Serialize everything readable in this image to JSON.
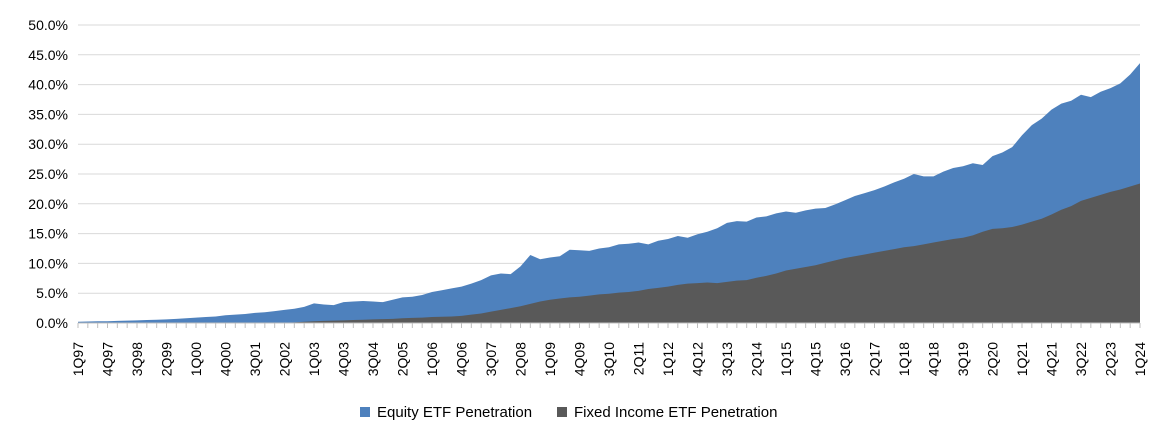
{
  "chart_data": {
    "type": "area",
    "title": "",
    "x_unit": "quarter",
    "x_first": "1Q97",
    "x_last": "1Q24",
    "n_points": 109,
    "x_tick_every": 3,
    "x_tick_labels": [
      "1Q97",
      "4Q97",
      "3Q98",
      "2Q99",
      "1Q00",
      "4Q00",
      "3Q01",
      "2Q02",
      "1Q03",
      "4Q03",
      "3Q04",
      "2Q05",
      "1Q06",
      "4Q06",
      "3Q07",
      "2Q08",
      "1Q09",
      "4Q09",
      "3Q10",
      "2Q11",
      "1Q12",
      "4Q12",
      "3Q13",
      "2Q14",
      "1Q15",
      "4Q15",
      "3Q16",
      "2Q17",
      "1Q18",
      "4Q18",
      "3Q19",
      "2Q20",
      "1Q21",
      "4Q21",
      "3Q22",
      "2Q23",
      "1Q24"
    ],
    "y_tick_labels": [
      "0.0%",
      "5.0%",
      "10.0%",
      "15.0%",
      "20.0%",
      "25.0%",
      "30.0%",
      "35.0%",
      "40.0%",
      "45.0%",
      "50.0%"
    ],
    "ylim": [
      0,
      50
    ],
    "y_tick_step": 5,
    "grid": true,
    "legend_position": "bottom",
    "render_style": "overlapping areas from zero baseline; equity drawn behind, fixed income drawn in front",
    "series": [
      {
        "name": "Equity ETF Penetration",
        "color": "#4E81BD",
        "values": [
          0.2,
          0.25,
          0.3,
          0.3,
          0.35,
          0.4,
          0.45,
          0.5,
          0.55,
          0.6,
          0.7,
          0.8,
          0.9,
          1.0,
          1.1,
          1.3,
          1.4,
          1.5,
          1.7,
          1.8,
          2.0,
          2.2,
          2.4,
          2.7,
          3.3,
          3.1,
          3.0,
          3.5,
          3.6,
          3.7,
          3.6,
          3.5,
          3.9,
          4.3,
          4.4,
          4.7,
          5.2,
          5.5,
          5.8,
          6.1,
          6.6,
          7.2,
          8.0,
          8.3,
          8.2,
          9.5,
          11.4,
          10.7,
          11.0,
          11.2,
          12.3,
          12.2,
          12.1,
          12.5,
          12.7,
          13.2,
          13.3,
          13.5,
          13.2,
          13.8,
          14.1,
          14.6,
          14.3,
          14.9,
          15.3,
          15.9,
          16.8,
          17.1,
          17.0,
          17.7,
          17.9,
          18.4,
          18.7,
          18.5,
          18.9,
          19.2,
          19.3,
          19.9,
          20.6,
          21.3,
          21.8,
          22.3,
          22.9,
          23.6,
          24.2,
          25.0,
          24.6,
          24.6,
          25.4,
          26.0,
          26.3,
          26.8,
          26.5,
          28.0,
          28.6,
          29.5,
          31.5,
          33.2,
          34.3,
          35.8,
          36.8,
          37.3,
          38.3,
          37.9,
          38.8,
          39.4,
          40.2,
          41.7,
          43.6
        ]
      },
      {
        "name": "Fixed Income ETF Penetration",
        "color": "#595959",
        "values": [
          0,
          0,
          0,
          0,
          0,
          0,
          0,
          0,
          0,
          0,
          0,
          0,
          0,
          0,
          0,
          0,
          0,
          0,
          0,
          0,
          0,
          0.05,
          0.1,
          0.2,
          0.3,
          0.35,
          0.4,
          0.45,
          0.5,
          0.55,
          0.6,
          0.65,
          0.7,
          0.8,
          0.85,
          0.9,
          1.0,
          1.05,
          1.1,
          1.2,
          1.4,
          1.6,
          1.9,
          2.2,
          2.5,
          2.8,
          3.2,
          3.6,
          3.9,
          4.1,
          4.3,
          4.4,
          4.6,
          4.8,
          4.9,
          5.1,
          5.2,
          5.4,
          5.7,
          5.9,
          6.1,
          6.4,
          6.6,
          6.7,
          6.8,
          6.7,
          6.9,
          7.1,
          7.2,
          7.6,
          7.9,
          8.3,
          8.8,
          9.1,
          9.4,
          9.7,
          10.1,
          10.5,
          10.9,
          11.2,
          11.5,
          11.8,
          12.1,
          12.4,
          12.7,
          12.9,
          13.2,
          13.5,
          13.8,
          14.1,
          14.3,
          14.7,
          15.3,
          15.8,
          15.9,
          16.1,
          16.5,
          17.0,
          17.5,
          18.2,
          19.0,
          19.6,
          20.5,
          21.0,
          21.5,
          22.0,
          22.4,
          22.9,
          23.4
        ]
      }
    ]
  },
  "styles": {
    "gridline_color": "#D9D9D9",
    "axis_color": "#BFBFBF",
    "text_color": "#000000",
    "background": "#FFFFFF"
  }
}
